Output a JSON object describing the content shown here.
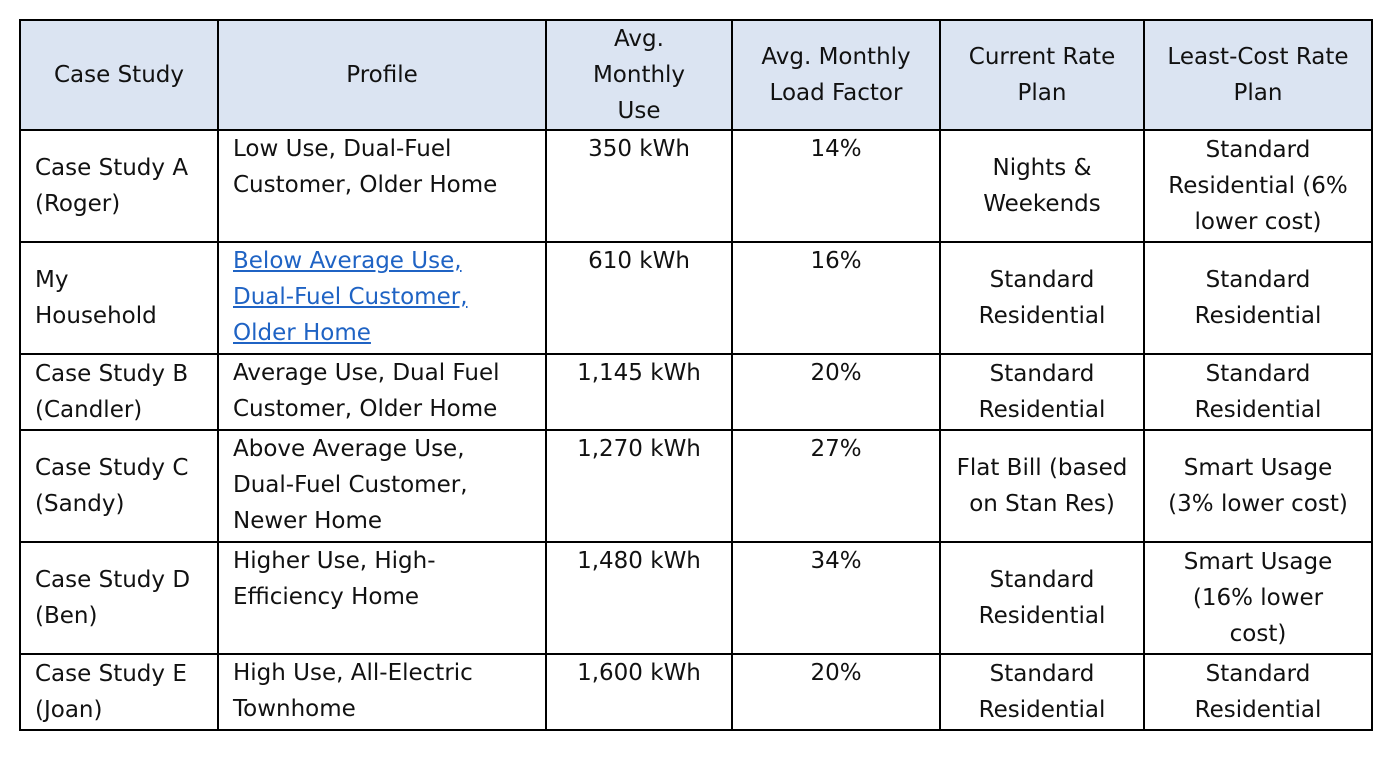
{
  "table": {
    "headers": [
      [
        "Case Study"
      ],
      [
        "Profile"
      ],
      [
        "Avg.",
        "Monthly",
        "Use"
      ],
      [
        "Avg. Monthly",
        "Load Factor"
      ],
      [
        "Current Rate",
        "Plan"
      ],
      [
        "Least-Cost Rate",
        "Plan"
      ]
    ],
    "rows": [
      {
        "case_study": [
          "Case Study A",
          "(Roger)"
        ],
        "profile": [
          "Low Use, Dual-Fuel",
          "Customer, Older Home"
        ],
        "use": "350 kWh",
        "load_factor": "14%",
        "current_plan": [
          "Nights &",
          "Weekends"
        ],
        "least_cost_plan": [
          "Standard",
          "Residential (6%",
          "lower cost)"
        ]
      },
      {
        "case_study": [
          "My",
          "Household"
        ],
        "profile": [
          "Below Average Use,",
          "Dual-Fuel Customer,",
          "Older Home"
        ],
        "use": "610 kWh",
        "load_factor": "16%",
        "current_plan": [
          "Standard",
          "Residential"
        ],
        "least_cost_plan": [
          "Standard",
          "Residential"
        ]
      },
      {
        "case_study": [
          "Case Study B",
          "(Candler)"
        ],
        "profile": [
          "Average Use, Dual Fuel",
          "Customer, Older Home"
        ],
        "use": "1,145 kWh",
        "load_factor": "20%",
        "current_plan": [
          "Standard",
          "Residential"
        ],
        "least_cost_plan": [
          "Standard",
          "Residential"
        ]
      },
      {
        "case_study": [
          "Case Study C",
          "(Sandy)"
        ],
        "profile": [
          "Above Average Use,",
          "Dual-Fuel Customer,",
          "Newer Home"
        ],
        "use": "1,270 kWh",
        "load_factor": "27%",
        "current_plan": [
          "Flat Bill (based",
          "on Stan Res)"
        ],
        "least_cost_plan": [
          "Smart Usage",
          "(3% lower cost)"
        ]
      },
      {
        "case_study": [
          "Case Study D",
          "(Ben)"
        ],
        "profile": [
          "Higher Use, High-",
          "Efficiency Home"
        ],
        "use": "1,480 kWh",
        "load_factor": "34%",
        "current_plan": [
          "Standard",
          "Residential"
        ],
        "least_cost_plan": [
          "Smart Usage",
          "(16% lower",
          "cost)"
        ]
      },
      {
        "case_study": [
          "Case Study E",
          "(Joan)"
        ],
        "profile": [
          "High Use, All-Electric",
          "Townhome"
        ],
        "use": "1,600 kWh",
        "load_factor": "20%",
        "current_plan": [
          "Standard",
          "Residential"
        ],
        "least_cost_plan": [
          "Standard",
          "Residential"
        ]
      }
    ],
    "linked_row_index": 1,
    "colors": {
      "header_bg": "#dbe4f2",
      "link": "#1f63c4",
      "border": "#000000"
    }
  }
}
